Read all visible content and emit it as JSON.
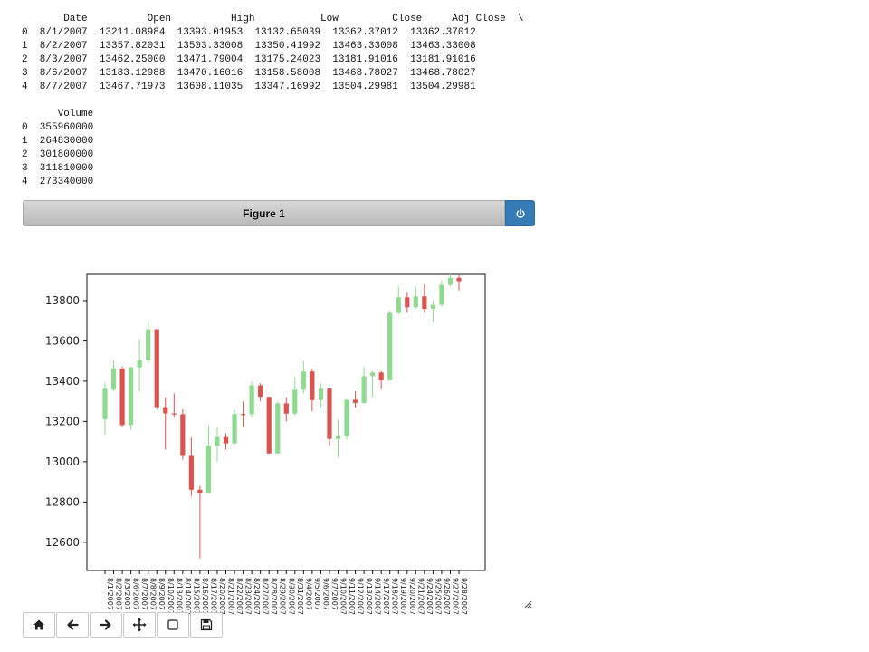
{
  "dataframe": {
    "top_text": "       Date          Open          High           Low         Close     Adj Close  \\\n0  8/1/2007  13211.08984  13393.01953  13132.65039  13362.37012  13362.37012\n1  8/2/2007  13357.82031  13503.33008  13350.41992  13463.33008  13463.33008\n2  8/3/2007  13462.25000  13471.79004  13175.24023  13181.91016  13181.91016\n3  8/6/2007  13183.12988  13470.16016  13158.58008  13468.78027  13468.78027\n4  8/7/2007  13467.71973  13608.11035  13347.16992  13504.29981  13504.29981",
    "bottom_text": "      Volume\n0  355960000\n1  264830000\n2  301800000\n3  311810000\n4  273340000"
  },
  "figure": {
    "title": "Figure 1",
    "power_icon": "power-icon"
  },
  "toolbar": {
    "buttons": [
      {
        "name": "home-button",
        "icon": "home-icon"
      },
      {
        "name": "back-button",
        "icon": "arrow-left-icon"
      },
      {
        "name": "forward-button",
        "icon": "arrow-right-icon"
      },
      {
        "name": "pan-button",
        "icon": "move-icon"
      },
      {
        "name": "zoom-button",
        "icon": "square-icon"
      },
      {
        "name": "save-button",
        "icon": "floppy-disk-icon"
      }
    ]
  },
  "colors": {
    "up": "#90d990",
    "down": "#d9534f",
    "accent": "#337ab7"
  },
  "chart_data": {
    "type": "candlestick",
    "title": "",
    "xlabel": "",
    "ylabel": "",
    "ylim": [
      12460,
      13930
    ],
    "yticks": [
      12600,
      12800,
      13000,
      13200,
      13400,
      13600,
      13800
    ],
    "grid": false,
    "ohlc": [
      {
        "date": "8/1/2007",
        "open": 13211,
        "high": 13393,
        "low": 13133,
        "close": 13362
      },
      {
        "date": "8/2/2007",
        "open": 13358,
        "high": 13503,
        "low": 13350,
        "close": 13463
      },
      {
        "date": "8/3/2007",
        "open": 13462,
        "high": 13472,
        "low": 13175,
        "close": 13182
      },
      {
        "date": "8/6/2007",
        "open": 13183,
        "high": 13470,
        "low": 13159,
        "close": 13469
      },
      {
        "date": "8/7/2007",
        "open": 13468,
        "high": 13608,
        "low": 13347,
        "close": 13504
      },
      {
        "date": "8/8/2007",
        "open": 13504,
        "high": 13700,
        "low": 13490,
        "close": 13658
      },
      {
        "date": "8/9/2007",
        "open": 13658,
        "high": 13658,
        "low": 13260,
        "close": 13271
      },
      {
        "date": "8/10/2007",
        "open": 13271,
        "high": 13320,
        "low": 13060,
        "close": 13240
      },
      {
        "date": "8/13/2007",
        "open": 13240,
        "high": 13340,
        "low": 13220,
        "close": 13236
      },
      {
        "date": "8/14/2007",
        "open": 13236,
        "high": 13260,
        "low": 13010,
        "close": 13029
      },
      {
        "date": "8/15/2007",
        "open": 13029,
        "high": 13120,
        "low": 12830,
        "close": 12861
      },
      {
        "date": "8/16/2007",
        "open": 12861,
        "high": 12880,
        "low": 12520,
        "close": 12846
      },
      {
        "date": "8/17/2007",
        "open": 12846,
        "high": 13180,
        "low": 12846,
        "close": 13079
      },
      {
        "date": "8/20/2007",
        "open": 13079,
        "high": 13170,
        "low": 13000,
        "close": 13122
      },
      {
        "date": "8/21/2007",
        "open": 13122,
        "high": 13140,
        "low": 13060,
        "close": 13091
      },
      {
        "date": "8/22/2007",
        "open": 13091,
        "high": 13260,
        "low": 13085,
        "close": 13237
      },
      {
        "date": "8/23/2007",
        "open": 13237,
        "high": 13300,
        "low": 13170,
        "close": 13236
      },
      {
        "date": "8/24/2007",
        "open": 13236,
        "high": 13400,
        "low": 13220,
        "close": 13379
      },
      {
        "date": "8/27/2007",
        "open": 13379,
        "high": 13390,
        "low": 13300,
        "close": 13322
      },
      {
        "date": "8/28/2007",
        "open": 13322,
        "high": 13322,
        "low": 13040,
        "close": 13041
      },
      {
        "date": "8/29/2007",
        "open": 13041,
        "high": 13300,
        "low": 13041,
        "close": 13290
      },
      {
        "date": "8/30/2007",
        "open": 13290,
        "high": 13320,
        "low": 13200,
        "close": 13239
      },
      {
        "date": "8/31/2007",
        "open": 13239,
        "high": 13420,
        "low": 13230,
        "close": 13358
      },
      {
        "date": "9/4/2007",
        "open": 13358,
        "high": 13500,
        "low": 13340,
        "close": 13448
      },
      {
        "date": "9/5/2007",
        "open": 13448,
        "high": 13460,
        "low": 13250,
        "close": 13306
      },
      {
        "date": "9/6/2007",
        "open": 13306,
        "high": 13390,
        "low": 13270,
        "close": 13363
      },
      {
        "date": "9/7/2007",
        "open": 13363,
        "high": 13363,
        "low": 13080,
        "close": 13113
      },
      {
        "date": "9/10/2007",
        "open": 13113,
        "high": 13210,
        "low": 13020,
        "close": 13128
      },
      {
        "date": "9/11/2007",
        "open": 13128,
        "high": 13310,
        "low": 13110,
        "close": 13308
      },
      {
        "date": "9/12/2007",
        "open": 13308,
        "high": 13350,
        "low": 13270,
        "close": 13292
      },
      {
        "date": "9/13/2007",
        "open": 13292,
        "high": 13470,
        "low": 13290,
        "close": 13425
      },
      {
        "date": "9/14/2007",
        "open": 13425,
        "high": 13450,
        "low": 13320,
        "close": 13443
      },
      {
        "date": "9/17/2007",
        "open": 13443,
        "high": 13450,
        "low": 13360,
        "close": 13404
      },
      {
        "date": "9/18/2007",
        "open": 13404,
        "high": 13750,
        "low": 13400,
        "close": 13739
      },
      {
        "date": "9/19/2007",
        "open": 13739,
        "high": 13870,
        "low": 13730,
        "close": 13816
      },
      {
        "date": "9/20/2007",
        "open": 13816,
        "high": 13840,
        "low": 13740,
        "close": 13767
      },
      {
        "date": "9/21/2007",
        "open": 13767,
        "high": 13870,
        "low": 13760,
        "close": 13821
      },
      {
        "date": "9/24/2007",
        "open": 13821,
        "high": 13880,
        "low": 13740,
        "close": 13759
      },
      {
        "date": "9/25/2007",
        "open": 13759,
        "high": 13800,
        "low": 13690,
        "close": 13779
      },
      {
        "date": "9/26/2007",
        "open": 13779,
        "high": 13900,
        "low": 13770,
        "close": 13878
      },
      {
        "date": "9/27/2007",
        "open": 13878,
        "high": 13930,
        "low": 13870,
        "close": 13913
      },
      {
        "date": "9/28/2007",
        "open": 13913,
        "high": 13930,
        "low": 13850,
        "close": 13896
      }
    ]
  }
}
